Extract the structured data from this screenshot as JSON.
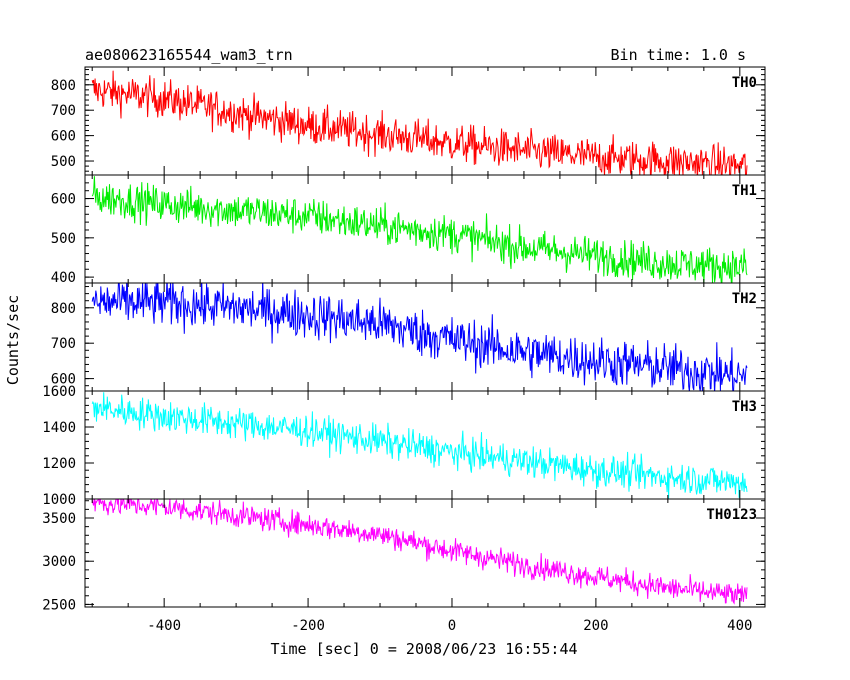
{
  "chart_data": {
    "type": "line",
    "title": "ae080623165544_wam3_trn",
    "subtitle": "Bin time: 1.0 s",
    "xlabel": "Time [sec] 0 = 2008/06/23 16:55:44",
    "ylabel": "Counts/sec",
    "xlim": [
      -510,
      435
    ],
    "x_ticks": [
      -400,
      -200,
      0,
      200,
      400
    ],
    "x_range": [
      -500,
      410
    ],
    "grid": false,
    "panels": [
      {
        "name": "TH0",
        "color": "#ff0000",
        "ylim": [
          445,
          870
        ],
        "y_ticks": [
          500,
          600,
          700,
          800
        ],
        "trend": [
          [
            -500,
            780
          ],
          [
            -400,
            745
          ],
          [
            -300,
            690
          ],
          [
            -200,
            640
          ],
          [
            -100,
            605
          ],
          [
            0,
            570
          ],
          [
            100,
            540
          ],
          [
            200,
            515
          ],
          [
            300,
            500
          ],
          [
            410,
            480
          ]
        ],
        "noise": 38
      },
      {
        "name": "TH1",
        "color": "#00ee00",
        "ylim": [
          385,
          660
        ],
        "y_ticks": [
          400,
          500,
          600
        ],
        "trend": [
          [
            -500,
            605
          ],
          [
            -400,
            585
          ],
          [
            -300,
            570
          ],
          [
            -200,
            555
          ],
          [
            -100,
            530
          ],
          [
            0,
            510
          ],
          [
            100,
            475
          ],
          [
            200,
            455
          ],
          [
            300,
            435
          ],
          [
            410,
            425
          ]
        ],
        "noise": 24
      },
      {
        "name": "TH2",
        "color": "#0000ff",
        "ylim": [
          565,
          870
        ],
        "y_ticks": [
          600,
          700,
          800
        ],
        "trend": [
          [
            -500,
            815
          ],
          [
            -400,
            815
          ],
          [
            -300,
            800
          ],
          [
            -200,
            780
          ],
          [
            -100,
            755
          ],
          [
            0,
            710
          ],
          [
            100,
            675
          ],
          [
            200,
            650
          ],
          [
            300,
            630
          ],
          [
            410,
            605
          ]
        ],
        "noise": 34
      },
      {
        "name": "TH3",
        "color": "#00ffff",
        "ylim": [
          1000,
          1600
        ],
        "y_ticks": [
          1000,
          1200,
          1400,
          1600
        ],
        "trend": [
          [
            -500,
            1510
          ],
          [
            -400,
            1460
          ],
          [
            -300,
            1420
          ],
          [
            -200,
            1380
          ],
          [
            -100,
            1320
          ],
          [
            0,
            1260
          ],
          [
            100,
            1210
          ],
          [
            200,
            1160
          ],
          [
            300,
            1120
          ],
          [
            410,
            1090
          ]
        ],
        "noise": 45
      },
      {
        "name": "TH0123",
        "color": "#ff00ff",
        "ylim": [
          2470,
          3720
        ],
        "y_ticks": [
          2500,
          3000,
          3500
        ],
        "trend": [
          [
            -500,
            3680
          ],
          [
            -400,
            3630
          ],
          [
            -300,
            3530
          ],
          [
            -200,
            3420
          ],
          [
            -100,
            3310
          ],
          [
            0,
            3120
          ],
          [
            100,
            2960
          ],
          [
            200,
            2820
          ],
          [
            300,
            2690
          ],
          [
            410,
            2590
          ]
        ],
        "noise": 70
      }
    ]
  }
}
